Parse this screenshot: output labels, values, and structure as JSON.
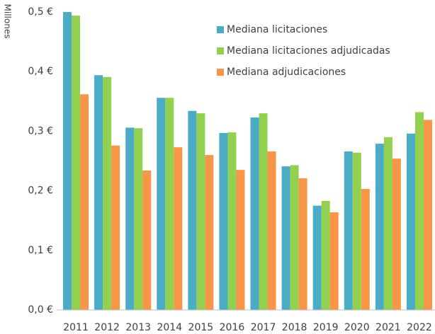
{
  "chart_data": {
    "type": "bar",
    "ylabel": "Millones",
    "categories": [
      "2011",
      "2012",
      "2013",
      "2014",
      "2015",
      "2016",
      "2017",
      "2018",
      "2019",
      "2020",
      "2021",
      "2022"
    ],
    "series": [
      {
        "name": "Mediana licitaciones",
        "color": "#4bacc6",
        "values": [
          0.5,
          0.394,
          0.306,
          0.356,
          0.334,
          0.297,
          0.323,
          0.241,
          0.175,
          0.266,
          0.279,
          0.296
        ]
      },
      {
        "name": "Mediana licitaciones adjudicadas",
        "color": "#92d050",
        "values": [
          0.494,
          0.391,
          0.305,
          0.356,
          0.33,
          0.298,
          0.33,
          0.243,
          0.183,
          0.264,
          0.29,
          0.332
        ]
      },
      {
        "name": "Mediana adjudicaciones",
        "color": "#f79646",
        "values": [
          0.362,
          0.276,
          0.234,
          0.273,
          0.26,
          0.235,
          0.266,
          0.221,
          0.164,
          0.203,
          0.254,
          0.319
        ]
      }
    ],
    "ylim": [
      0,
      0.5
    ],
    "yticks": [
      {
        "value": 0,
        "label": "0,0 €"
      },
      {
        "value": 0.1,
        "label": "0,1 €"
      },
      {
        "value": 0.2,
        "label": "0,2 €"
      },
      {
        "value": 0.3,
        "label": "0,3 €"
      },
      {
        "value": 0.4,
        "label": "0,4 €"
      },
      {
        "value": 0.5,
        "label": "0,5 €"
      }
    ],
    "grid": false,
    "legend": "top-right"
  }
}
